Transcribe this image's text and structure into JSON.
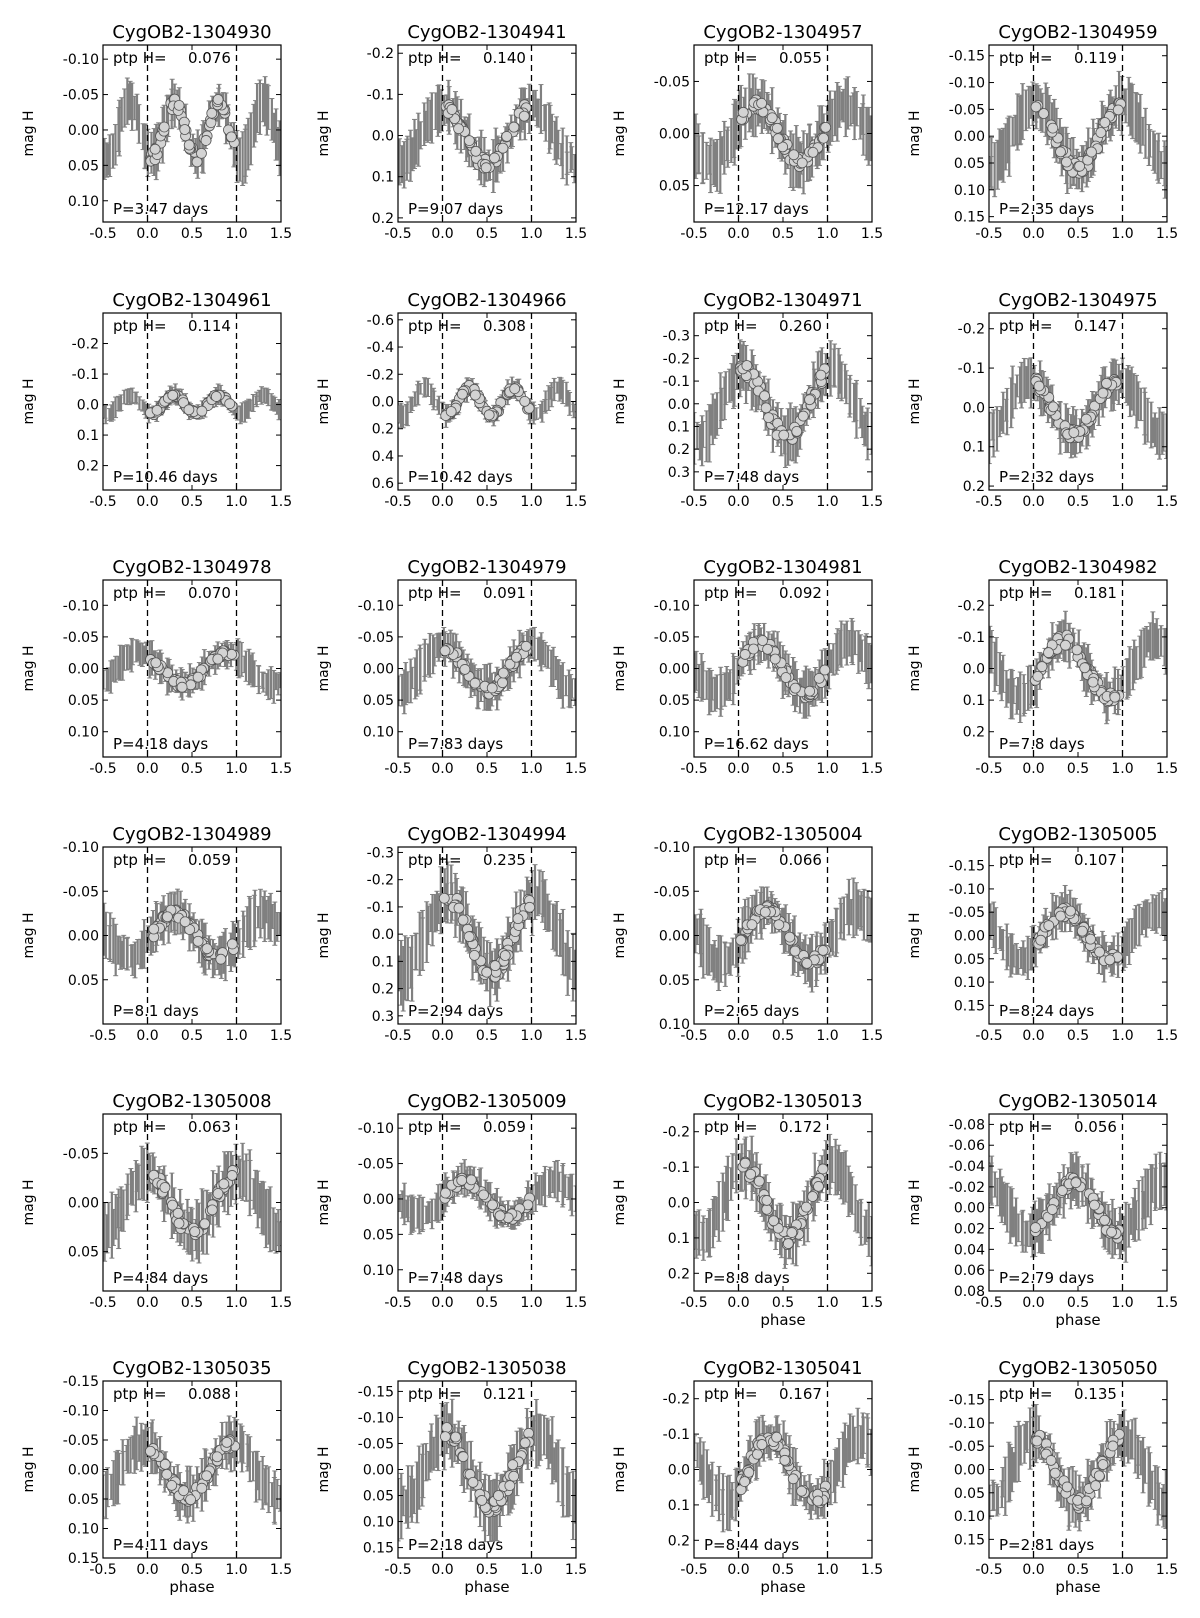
{
  "chart_data": [
    {
      "type": "scatter",
      "title": "CygOB2-1304930",
      "ptp_label": "ptp H=",
      "ptp": "0.076",
      "period_label": "P=3.47 days",
      "period": 3.47,
      "amp": 0.038,
      "phi0": 0.05,
      "shape": "sin2",
      "ylim": [
        0.13,
        -0.12
      ],
      "yticks": [
        "-0.10",
        "-0.05",
        "0.00",
        "0.05",
        "0.10"
      ],
      "ytick_values": [
        -0.1,
        -0.05,
        0.0,
        0.05,
        0.1
      ],
      "xlim": [
        -0.5,
        1.5
      ],
      "xticks": [
        "-0.5",
        "0.0",
        "0.5",
        "1.0",
        "1.5"
      ],
      "ylabel": "mag H",
      "xlabel": ""
    },
    {
      "type": "scatter",
      "title": "CygOB2-1304941",
      "ptp_label": "ptp H=",
      "ptp": "0.140",
      "period_label": "P=9.07 days",
      "period": 9.07,
      "amp": 0.07,
      "phi0": 0.0,
      "shape": "sin",
      "ylim": [
        0.21,
        -0.22
      ],
      "yticks": [
        "-0.2",
        "-0.1",
        "0.0",
        "0.1",
        "0.2"
      ],
      "ytick_values": [
        -0.2,
        -0.1,
        0.0,
        0.1,
        0.2
      ],
      "xlim": [
        -0.5,
        1.5
      ],
      "xticks": [
        "-0.5",
        "0.0",
        "0.5",
        "1.0",
        "1.5"
      ],
      "ylabel": "mag H",
      "xlabel": ""
    },
    {
      "type": "scatter",
      "title": "CygOB2-1304957",
      "ptp_label": "ptp H=",
      "ptp": "0.055",
      "period_label": "P=12.17 days",
      "period": 12.17,
      "amp": 0.028,
      "phi0": 0.2,
      "shape": "sin",
      "ylim": [
        0.085,
        -0.085
      ],
      "yticks": [
        "-0.05",
        "0.00",
        "0.05"
      ],
      "ytick_values": [
        -0.05,
        0.0,
        0.05
      ],
      "xlim": [
        -0.5,
        1.5
      ],
      "xticks": [
        "-0.5",
        "0.0",
        "0.5",
        "1.0",
        "1.5"
      ],
      "ylabel": "mag H",
      "xlabel": ""
    },
    {
      "type": "scatter",
      "title": "CygOB2-1304959",
      "ptp_label": "ptp H=",
      "ptp": "0.119",
      "period_label": "P=2.35 days",
      "period": 2.35,
      "amp": 0.06,
      "phi0": 0.0,
      "shape": "sin",
      "ylim": [
        0.16,
        -0.17
      ],
      "yticks": [
        "-0.15",
        "-0.10",
        "-0.05",
        "0.00",
        "0.05",
        "0.10",
        "0.15"
      ],
      "ytick_values": [
        -0.15,
        -0.1,
        -0.05,
        0.0,
        0.05,
        0.1,
        0.15
      ],
      "xlim": [
        -0.5,
        1.5
      ],
      "xticks": [
        "-0.5",
        "0.0",
        "0.5",
        "1.0",
        "1.5"
      ],
      "ylabel": "mag H",
      "xlabel": ""
    },
    {
      "type": "scatter",
      "title": "CygOB2-1304961",
      "ptp_label": "ptp H=",
      "ptp": "0.114",
      "period_label": "P=10.46 days",
      "period": 10.46,
      "amp": 0.03,
      "phi0": 0.05,
      "shape": "sin2",
      "ylim": [
        0.28,
        -0.3
      ],
      "yticks": [
        "-0.2",
        "-0.1",
        "0.0",
        "0.1",
        "0.2"
      ],
      "ytick_values": [
        -0.2,
        -0.1,
        0.0,
        0.1,
        0.2
      ],
      "xlim": [
        -0.5,
        1.5
      ],
      "xticks": [
        "-0.5",
        "0.0",
        "0.5",
        "1.0",
        "1.5"
      ],
      "ylabel": "mag H",
      "xlabel": ""
    },
    {
      "type": "scatter",
      "title": "CygOB2-1304966",
      "ptp_label": "ptp H=",
      "ptp": "0.308",
      "period_label": "P=10.42 days",
      "period": 10.42,
      "amp": 0.1,
      "phi0": 0.05,
      "shape": "sin2",
      "ylim": [
        0.65,
        -0.65
      ],
      "yticks": [
        "-0.6",
        "-0.4",
        "-0.2",
        "0.0",
        "0.2",
        "0.4",
        "0.6"
      ],
      "ytick_values": [
        -0.6,
        -0.4,
        -0.2,
        0.0,
        0.2,
        0.4,
        0.6
      ],
      "xlim": [
        -0.5,
        1.5
      ],
      "xticks": [
        "-0.5",
        "0.0",
        "0.5",
        "1.0",
        "1.5"
      ],
      "ylabel": "mag H",
      "xlabel": ""
    },
    {
      "type": "scatter",
      "title": "CygOB2-1304971",
      "ptp_label": "ptp H=",
      "ptp": "0.260",
      "period_label": "P=7.48 days",
      "period": 7.48,
      "amp": 0.15,
      "phi0": 0.05,
      "shape": "sin",
      "ylim": [
        0.38,
        -0.4
      ],
      "yticks": [
        "-0.3",
        "-0.2",
        "-0.1",
        "0.0",
        "0.1",
        "0.2",
        "0.3"
      ],
      "ytick_values": [
        -0.3,
        -0.2,
        -0.1,
        0.0,
        0.1,
        0.2,
        0.3
      ],
      "xlim": [
        -0.5,
        1.5
      ],
      "xticks": [
        "-0.5",
        "0.0",
        "0.5",
        "1.0",
        "1.5"
      ],
      "ylabel": "mag H",
      "xlabel": ""
    },
    {
      "type": "scatter",
      "title": "CygOB2-1304975",
      "ptp_label": "ptp H=",
      "ptp": "0.147",
      "period_label": "P=2.32 days",
      "period": 2.32,
      "amp": 0.07,
      "phi0": -0.05,
      "shape": "sin",
      "ylim": [
        0.21,
        -0.24
      ],
      "yticks": [
        "-0.2",
        "-0.1",
        "0.0",
        "0.1",
        "0.2"
      ],
      "ytick_values": [
        -0.2,
        -0.1,
        0.0,
        0.1,
        0.2
      ],
      "xlim": [
        -0.5,
        1.5
      ],
      "xticks": [
        "-0.5",
        "0.0",
        "0.5",
        "1.0",
        "1.5"
      ],
      "ylabel": "mag H",
      "xlabel": ""
    },
    {
      "type": "scatter",
      "title": "CygOB2-1304978",
      "ptp_label": "ptp H=",
      "ptp": "0.070",
      "period_label": "P=4.18 days",
      "period": 4.18,
      "amp": 0.025,
      "phi0": -0.1,
      "shape": "sin",
      "ylim": [
        0.14,
        -0.14
      ],
      "yticks": [
        "-0.10",
        "-0.05",
        "0.00",
        "0.05",
        "0.10"
      ],
      "ytick_values": [
        -0.1,
        -0.05,
        0.0,
        0.05,
        0.1
      ],
      "xlim": [
        -0.5,
        1.5
      ],
      "xticks": [
        "-0.5",
        "0.0",
        "0.5",
        "1.0",
        "1.5"
      ],
      "ylabel": "mag H",
      "xlabel": ""
    },
    {
      "type": "scatter",
      "title": "CygOB2-1304979",
      "ptp_label": "ptp H=",
      "ptp": "0.091",
      "period_label": "P=7.83 days",
      "period": 7.83,
      "amp": 0.035,
      "phi0": 0.0,
      "shape": "sin",
      "ylim": [
        0.14,
        -0.14
      ],
      "yticks": [
        "-0.10",
        "-0.05",
        "0.00",
        "0.05",
        "0.10"
      ],
      "ytick_values": [
        -0.1,
        -0.05,
        0.0,
        0.05,
        0.1
      ],
      "xlim": [
        -0.5,
        1.5
      ],
      "xticks": [
        "-0.5",
        "0.0",
        "0.5",
        "1.0",
        "1.5"
      ],
      "ylabel": "mag H",
      "xlabel": ""
    },
    {
      "type": "scatter",
      "title": "CygOB2-1304981",
      "ptp_label": "ptp H=",
      "ptp": "0.092",
      "period_label": "P=16.62 days",
      "period": 16.62,
      "amp": 0.04,
      "phi0": 0.25,
      "shape": "sin",
      "ylim": [
        0.14,
        -0.14
      ],
      "yticks": [
        "-0.10",
        "-0.05",
        "0.00",
        "0.05",
        "0.10"
      ],
      "ytick_values": [
        -0.1,
        -0.05,
        0.0,
        0.05,
        0.1
      ],
      "xlim": [
        -0.5,
        1.5
      ],
      "xticks": [
        "-0.5",
        "0.0",
        "0.5",
        "1.0",
        "1.5"
      ],
      "ylabel": "mag H",
      "xlabel": ""
    },
    {
      "type": "scatter",
      "title": "CygOB2-1304982",
      "ptp_label": "ptp H=",
      "ptp": "0.181",
      "period_label": "P=7.8 days",
      "period": 7.8,
      "amp": 0.09,
      "phi0": 0.35,
      "shape": "sin",
      "ylim": [
        0.28,
        -0.28
      ],
      "yticks": [
        "-0.2",
        "-0.1",
        "0.0",
        "0.1",
        "0.2"
      ],
      "ytick_values": [
        -0.2,
        -0.1,
        0.0,
        0.1,
        0.2
      ],
      "xlim": [
        -0.5,
        1.5
      ],
      "xticks": [
        "-0.5",
        "0.0",
        "0.5",
        "1.0",
        "1.5"
      ],
      "ylabel": "mag H",
      "xlabel": ""
    },
    {
      "type": "scatter",
      "title": "CygOB2-1304989",
      "ptp_label": "ptp H=",
      "ptp": "0.059",
      "period_label": "P=8.1 days",
      "period": 8.1,
      "amp": 0.025,
      "phi0": 0.3,
      "shape": "sin",
      "ylim": [
        0.1,
        -0.1
      ],
      "yticks": [
        "-0.10",
        "-0.05",
        "0.00",
        "0.05"
      ],
      "ytick_values": [
        -0.1,
        -0.05,
        0.0,
        0.05
      ],
      "xlim": [
        -0.5,
        1.5
      ],
      "xticks": [
        "-0.5",
        "0.0",
        "0.5",
        "1.0",
        "1.5"
      ],
      "ylabel": "mag H",
      "xlabel": ""
    },
    {
      "type": "scatter",
      "title": "CygOB2-1304994",
      "ptp_label": "ptp H=",
      "ptp": "0.235",
      "period_label": "P=2.94 days",
      "period": 2.94,
      "amp": 0.14,
      "phi0": 0.05,
      "shape": "sin",
      "ylim": [
        0.33,
        -0.32
      ],
      "yticks": [
        "-0.3",
        "-0.2",
        "-0.1",
        "0.0",
        "0.1",
        "0.2",
        "0.3"
      ],
      "ytick_values": [
        -0.3,
        -0.2,
        -0.1,
        0.0,
        0.1,
        0.2,
        0.3
      ],
      "xlim": [
        -0.5,
        1.5
      ],
      "xticks": [
        "-0.5",
        "0.0",
        "0.5",
        "1.0",
        "1.5"
      ],
      "ylabel": "mag H",
      "xlabel": ""
    },
    {
      "type": "scatter",
      "title": "CygOB2-1305004",
      "ptp_label": "ptp H=",
      "ptp": "0.066",
      "period_label": "P=2.65 days",
      "period": 2.65,
      "amp": 0.03,
      "phi0": 0.3,
      "shape": "sin",
      "ylim": [
        0.1,
        -0.1
      ],
      "yticks": [
        "-0.10",
        "-0.05",
        "0.00",
        "0.05",
        "0.10"
      ],
      "ytick_values": [
        -0.1,
        -0.05,
        0.0,
        0.05,
        0.1
      ],
      "xlim": [
        -0.5,
        1.5
      ],
      "xticks": [
        "-0.5",
        "0.0",
        "0.5",
        "1.0",
        "1.5"
      ],
      "ylabel": "mag H",
      "xlabel": ""
    },
    {
      "type": "scatter",
      "title": "CygOB2-1305005",
      "ptp_label": "ptp H=",
      "ptp": "0.107",
      "period_label": "P=8.24 days",
      "period": 8.24,
      "amp": 0.05,
      "phi0": 0.35,
      "shape": "sin",
      "ylim": [
        0.19,
        -0.19
      ],
      "yticks": [
        "-0.15",
        "-0.10",
        "-0.05",
        "0.00",
        "0.05",
        "0.10",
        "0.15"
      ],
      "ytick_values": [
        -0.15,
        -0.1,
        -0.05,
        0.0,
        0.05,
        0.1,
        0.15
      ],
      "xlim": [
        -0.5,
        1.5
      ],
      "xticks": [
        "-0.5",
        "0.0",
        "0.5",
        "1.0",
        "1.5"
      ],
      "ylabel": "mag H",
      "xlabel": ""
    },
    {
      "type": "scatter",
      "title": "CygOB2-1305008",
      "ptp_label": "ptp H=",
      "ptp": "0.063",
      "period_label": "P=4.84 days",
      "period": 4.84,
      "amp": 0.03,
      "phi0": 0.0,
      "shape": "sin",
      "ylim": [
        0.09,
        -0.09
      ],
      "yticks": [
        "-0.05",
        "0.00",
        "0.05"
      ],
      "ytick_values": [
        -0.05,
        0.0,
        0.05
      ],
      "xlim": [
        -0.5,
        1.5
      ],
      "xticks": [
        "-0.5",
        "0.0",
        "0.5",
        "1.0",
        "1.5"
      ],
      "ylabel": "mag H",
      "xlabel": ""
    },
    {
      "type": "scatter",
      "title": "CygOB2-1305009",
      "ptp_label": "ptp H=",
      "ptp": "0.059",
      "period_label": "P=7.48 days",
      "period": 7.48,
      "amp": 0.025,
      "phi0": 0.25,
      "shape": "sin",
      "ylim": [
        0.13,
        -0.12
      ],
      "yticks": [
        "-0.10",
        "-0.05",
        "0.00",
        "0.05",
        "0.10"
      ],
      "ytick_values": [
        -0.1,
        -0.05,
        0.0,
        0.05,
        0.1
      ],
      "xlim": [
        -0.5,
        1.5
      ],
      "xticks": [
        "-0.5",
        "0.0",
        "0.5",
        "1.0",
        "1.5"
      ],
      "ylabel": "mag H",
      "xlabel": ""
    },
    {
      "type": "scatter",
      "title": "CygOB2-1305013",
      "ptp_label": "ptp H=",
      "ptp": "0.172",
      "period_label": "P=8.8 days",
      "period": 8.8,
      "amp": 0.1,
      "phi0": 0.05,
      "shape": "sin",
      "ylim": [
        0.25,
        -0.25
      ],
      "yticks": [
        "-0.2",
        "-0.1",
        "0.0",
        "0.1",
        "0.2"
      ],
      "ytick_values": [
        -0.2,
        -0.1,
        0.0,
        0.1,
        0.2
      ],
      "xlim": [
        -0.5,
        1.5
      ],
      "xticks": [
        "-0.5",
        "0.0",
        "0.5",
        "1.0",
        "1.5"
      ],
      "ylabel": "mag H",
      "xlabel": "phase"
    },
    {
      "type": "scatter",
      "title": "CygOB2-1305014",
      "ptp_label": "ptp H=",
      "ptp": "0.056",
      "period_label": "P=2.79 days",
      "period": 2.79,
      "amp": 0.025,
      "phi0": 0.45,
      "shape": "sin",
      "ylim": [
        0.08,
        -0.09
      ],
      "yticks": [
        "-0.08",
        "-0.06",
        "-0.04",
        "-0.02",
        "0.00",
        "0.02",
        "0.04",
        "0.06",
        "0.08"
      ],
      "ytick_values": [
        -0.08,
        -0.06,
        -0.04,
        -0.02,
        0.0,
        0.02,
        0.04,
        0.06,
        0.08
      ],
      "xlim": [
        -0.5,
        1.5
      ],
      "xticks": [
        "-0.5",
        "0.0",
        "0.5",
        "1.0",
        "1.5"
      ],
      "ylabel": "mag H",
      "xlabel": "phase"
    },
    {
      "type": "scatter",
      "title": "CygOB2-1305035",
      "ptp_label": "ptp H=",
      "ptp": "0.088",
      "period_label": "P=4.11 days",
      "period": 4.11,
      "amp": 0.045,
      "phi0": -0.05,
      "shape": "sin",
      "ylim": [
        0.15,
        -0.15
      ],
      "yticks": [
        "-0.15",
        "-0.10",
        "-0.05",
        "0.00",
        "0.05",
        "0.10",
        "0.15"
      ],
      "ytick_values": [
        -0.15,
        -0.1,
        -0.05,
        0.0,
        0.05,
        0.1,
        0.15
      ],
      "xlim": [
        -0.5,
        1.5
      ],
      "xticks": [
        "-0.5",
        "0.0",
        "0.5",
        "1.0",
        "1.5"
      ],
      "ylabel": "mag H",
      "xlabel": "phase"
    },
    {
      "type": "scatter",
      "title": "CygOB2-1305038",
      "ptp_label": "ptp H=",
      "ptp": "0.121",
      "period_label": "P=2.18 days",
      "period": 2.18,
      "amp": 0.07,
      "phi0": 0.05,
      "shape": "sin",
      "ylim": [
        0.17,
        -0.17
      ],
      "yticks": [
        "-0.15",
        "-0.10",
        "-0.05",
        "0.00",
        "0.05",
        "0.10",
        "0.15"
      ],
      "ytick_values": [
        -0.15,
        -0.1,
        -0.05,
        0.0,
        0.05,
        0.1,
        0.15
      ],
      "xlim": [
        -0.5,
        1.5
      ],
      "xticks": [
        "-0.5",
        "0.0",
        "0.5",
        "1.0",
        "1.5"
      ],
      "ylabel": "mag H",
      "xlabel": "phase"
    },
    {
      "type": "scatter",
      "title": "CygOB2-1305041",
      "ptp_label": "ptp H=",
      "ptp": "0.167",
      "period_label": "P=8.44 days",
      "period": 8.44,
      "amp": 0.09,
      "phi0": 0.35,
      "shape": "sin",
      "ylim": [
        0.25,
        -0.25
      ],
      "yticks": [
        "-0.2",
        "-0.1",
        "0.0",
        "0.1",
        "0.2"
      ],
      "ytick_values": [
        -0.2,
        -0.1,
        0.0,
        0.1,
        0.2
      ],
      "xlim": [
        -0.5,
        1.5
      ],
      "xticks": [
        "-0.5",
        "0.0",
        "0.5",
        "1.0",
        "1.5"
      ],
      "ylabel": "mag H",
      "xlabel": "phase"
    },
    {
      "type": "scatter",
      "title": "CygOB2-1305050",
      "ptp_label": "ptp H=",
      "ptp": "0.135",
      "period_label": "P=2.81 days",
      "period": 2.81,
      "amp": 0.07,
      "phi0": 0.0,
      "shape": "sin",
      "ylim": [
        0.19,
        -0.19
      ],
      "yticks": [
        "-0.15",
        "-0.10",
        "-0.05",
        "0.00",
        "0.05",
        "0.10",
        "0.15"
      ],
      "ytick_values": [
        -0.15,
        -0.1,
        -0.05,
        0.0,
        0.05,
        0.1,
        0.15
      ],
      "xlim": [
        -0.5,
        1.5
      ],
      "xticks": [
        "-0.5",
        "0.0",
        "0.5",
        "1.0",
        "1.5"
      ],
      "ylabel": "mag H",
      "xlabel": "phase"
    }
  ],
  "colors": {
    "points_fill": "#d3d3d3",
    "points_edge": "#555555",
    "errorbars": "#808080",
    "axes": "#000000"
  }
}
